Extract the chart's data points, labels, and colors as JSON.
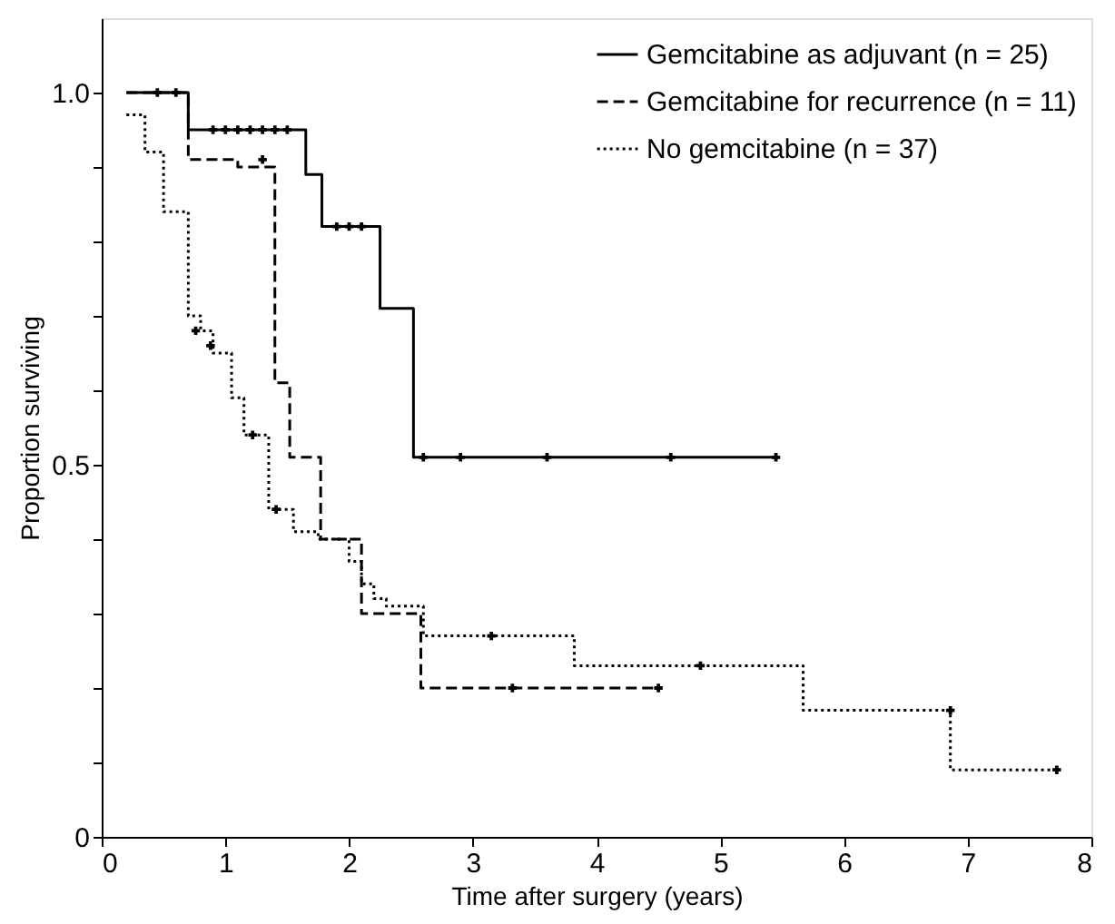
{
  "chart_data": {
    "type": "step",
    "xlabel": "Time after surgery (years)",
    "ylabel": "Proportion surviving",
    "xlim": [
      0,
      8
    ],
    "xticks": [
      0,
      1,
      2,
      3,
      4,
      5,
      6,
      7,
      8
    ],
    "ylim": [
      0,
      1.1
    ],
    "yticks": [
      0,
      {
        "value": 0.1,
        "label": null
      },
      {
        "value": 0.2,
        "label": null
      },
      {
        "value": 0.3,
        "label": null
      },
      {
        "value": 0.4,
        "label": null
      },
      0.5,
      {
        "value": 0.6,
        "label": null
      },
      {
        "value": 0.7,
        "label": null
      },
      {
        "value": 0.8,
        "label": null
      },
      {
        "value": 0.9,
        "label": null
      },
      {
        "value": 1.0,
        "label": "1.0"
      }
    ],
    "grid": false,
    "legend": "top right",
    "series": [
      {
        "name": "Gemcitabine as adjuvant (n = 25)",
        "color": "#000000",
        "line_style": "solid",
        "x": [
          0.2,
          0.7,
          1.65,
          1.78,
          2.25,
          2.52,
          5.45
        ],
        "values": [
          1.0,
          0.95,
          0.89,
          0.82,
          0.71,
          0.51,
          0.51
        ]
      },
      {
        "name": "Gemcitabine for recurrence (n = 11)",
        "color": "#000000",
        "line_style": "dashed",
        "x": [
          0.2,
          0.7,
          1.1,
          1.4,
          1.52,
          1.77,
          2.1,
          2.58,
          4.5
        ],
        "values": [
          1.0,
          0.91,
          0.9,
          0.61,
          0.51,
          0.4,
          0.3,
          0.2,
          0.2
        ]
      },
      {
        "name": "No gemcitabine (n = 37)",
        "color": "#000000",
        "line_style": "dotted",
        "x": [
          0.2,
          0.35,
          0.5,
          0.7,
          0.8,
          0.9,
          1.05,
          1.15,
          1.35,
          1.55,
          1.75,
          2.0,
          2.1,
          2.2,
          2.3,
          2.6,
          3.82,
          5.67,
          6.86,
          7.72
        ],
        "values": [
          0.97,
          0.92,
          0.84,
          0.7,
          0.68,
          0.65,
          0.59,
          0.54,
          0.44,
          0.41,
          0.4,
          0.37,
          0.34,
          0.32,
          0.31,
          0.27,
          0.23,
          0.17,
          0.09,
          0.09
        ]
      },
      {
        "type": "scatter",
        "color": "#000000",
        "marker": "cross",
        "x": [
          0.45,
          0.9,
          1.0,
          1.1,
          1.2,
          1.3,
          1.4,
          1.5,
          1.9,
          2.0,
          2.1,
          2.6,
          2.9,
          3.6,
          4.6,
          5.45
        ],
        "values": [
          1.0,
          0.95,
          0.95,
          0.95,
          0.95,
          0.95,
          0.95,
          0.95,
          0.82,
          0.82,
          0.82,
          0.51,
          0.51,
          0.51,
          0.51,
          0.51
        ]
      },
      {
        "type": "scatter",
        "color": "#000000",
        "marker": "cross",
        "x": [
          0.6,
          1.3,
          3.32,
          4.5
        ],
        "values": [
          1.0,
          0.91,
          0.2,
          0.2
        ]
      },
      {
        "type": "scatter",
        "color": "#000000",
        "marker": "cross",
        "x": [
          0.76,
          0.88,
          1.22,
          1.41,
          3.15,
          4.84,
          6.86,
          7.72
        ],
        "values": [
          0.68,
          0.66,
          0.54,
          0.44,
          0.27,
          0.23,
          0.17,
          0.09
        ]
      }
    ]
  }
}
